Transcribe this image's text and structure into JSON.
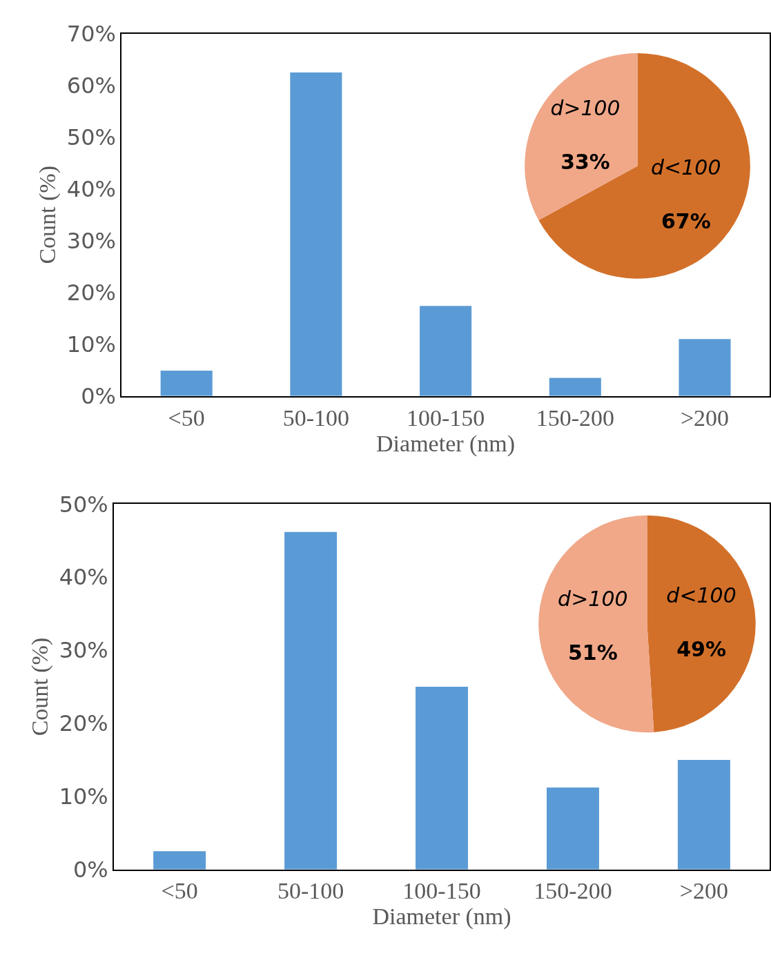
{
  "chart_data": [
    {
      "type": "bar",
      "categories": [
        "<50",
        "50-100",
        "100-150",
        "150-200",
        ">200"
      ],
      "values": [
        4.9,
        62.5,
        17.4,
        3.5,
        11.0
      ],
      "color": "#5b9bd5",
      "xlabel": "Diameter (nm)",
      "ylabel": "Count (%)",
      "ylim": [
        0,
        70
      ],
      "yticks": [
        {
          "value": 0,
          "label": "0%"
        },
        {
          "value": 10,
          "label": "10%"
        },
        {
          "value": 20,
          "label": "20%"
        },
        {
          "value": 30,
          "label": "30%"
        },
        {
          "value": 40,
          "label": "40%"
        },
        {
          "value": 50,
          "label": "50%"
        },
        {
          "value": 60,
          "label": "60%"
        },
        {
          "value": 70,
          "label": "70%"
        }
      ]
    },
    {
      "type": "pie",
      "categories": [
        "d<100",
        "d>100"
      ],
      "values": [
        67,
        33
      ],
      "colors": [
        "#d2702a",
        "#f0a889"
      ],
      "value_labels": [
        "67%",
        "33%"
      ]
    },
    {
      "type": "bar",
      "categories": [
        "<50",
        "50-100",
        "100-150",
        "150-200",
        ">200"
      ],
      "values": [
        2.5,
        46.2,
        25.0,
        11.2,
        15.0
      ],
      "color": "#5b9bd5",
      "xlabel": "Diameter (nm)",
      "ylabel": "Count (%)",
      "ylim": [
        0,
        50
      ],
      "yticks": [
        {
          "value": 0,
          "label": "0%"
        },
        {
          "value": 10,
          "label": "10%"
        },
        {
          "value": 20,
          "label": "20%"
        },
        {
          "value": 30,
          "label": "30%"
        },
        {
          "value": 40,
          "label": "40%"
        },
        {
          "value": 50,
          "label": "50%"
        }
      ]
    },
    {
      "type": "pie",
      "categories": [
        "d<100",
        "d>100"
      ],
      "values": [
        49,
        51
      ],
      "colors": [
        "#d2702a",
        "#f0a889"
      ],
      "value_labels": [
        "49%",
        "51%"
      ]
    }
  ]
}
